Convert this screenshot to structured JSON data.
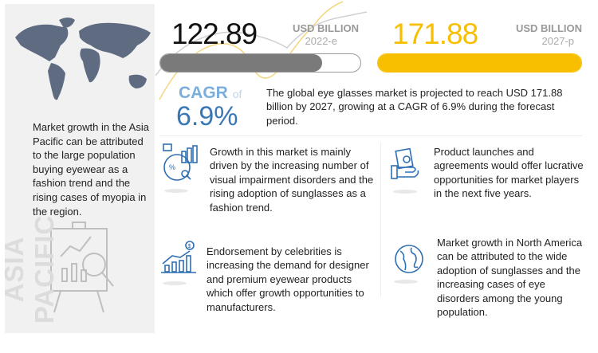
{
  "left_panel": {
    "region_label": "ASIA PACIFIC",
    "text": "Market growth in the Asia Pacific can be attributed to the large population buying eyewear as a fashion trend and the rising cases of myopia in the region."
  },
  "stats": [
    {
      "value": "122.89",
      "unit": "USD BILLION",
      "year": "2022-e",
      "bar_fill_fraction": 0.81,
      "color": "#7a7a7a"
    },
    {
      "value": "171.88",
      "unit": "USD BILLION",
      "year": "2027-p",
      "bar_fill_fraction": 1.0,
      "color": "#f7bf00"
    }
  ],
  "cagr": {
    "label": "CAGR",
    "of": "of",
    "value": "6.9%",
    "label_color": "#7aaedc",
    "value_color": "#3a78b5"
  },
  "summary": "The global eye glasses market is projected to reach USD 171.88 billion by 2027, growing at a CAGR of 6.9% during the forecast period.",
  "items": [
    {
      "icon": "analytics-percent-icon",
      "text": "Growth in this market is mainly driven by the increasing number of visual impairment disorders and the rising adoption of sunglasses as a fashion trend."
    },
    {
      "icon": "money-hand-icon",
      "text": "Product launches and agreements would offer lucrative opportunities for market players in the next five years."
    },
    {
      "icon": "growth-chart-dollar-icon",
      "text": "Endorsement by celebrities is increasing the demand for designer and premium eyewear products which offer growth opportunities to manufacturers."
    },
    {
      "icon": "globe-icon",
      "text": "Market growth in North America can be attributed to the wide adoption of sunglasses and the increasing cases of eye disorders among the young population."
    }
  ],
  "icon_color": "#2f6fb3"
}
